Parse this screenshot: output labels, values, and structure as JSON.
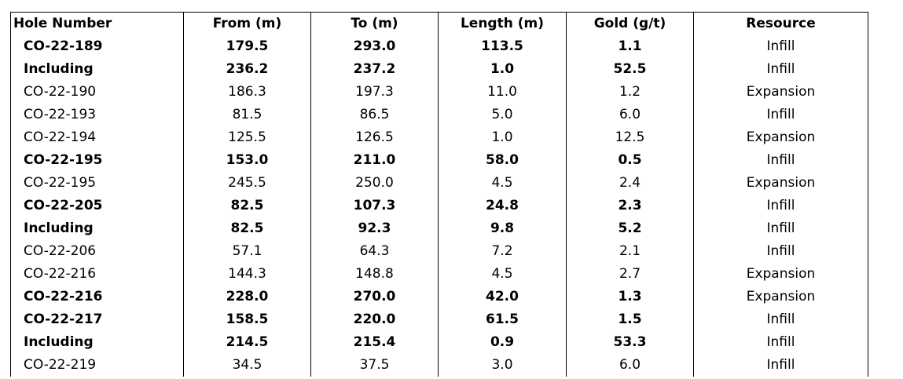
{
  "table": {
    "header": [
      "Hole Number",
      "From (m)",
      "To (m)",
      "Length (m)",
      "Gold (g/t)",
      "Resource"
    ],
    "rows": [
      {
        "cells": [
          "CO-22-189",
          "179.5",
          "293.0",
          "113.5",
          "1.1",
          "Infill"
        ],
        "bold": true
      },
      {
        "cells": [
          "Including",
          "236.2",
          "237.2",
          "1.0",
          "52.5",
          "Infill"
        ],
        "bold": true
      },
      {
        "cells": [
          "CO-22-190",
          "186.3",
          "197.3",
          "11.0",
          "1.2",
          "Expansion"
        ],
        "bold": false
      },
      {
        "cells": [
          "CO-22-193",
          "81.5",
          "86.5",
          "5.0",
          "6.0",
          "Infill"
        ],
        "bold": false
      },
      {
        "cells": [
          "CO-22-194",
          "125.5",
          "126.5",
          "1.0",
          "12.5",
          "Expansion"
        ],
        "bold": false
      },
      {
        "cells": [
          "CO-22-195",
          "153.0",
          "211.0",
          "58.0",
          "0.5",
          "Infill"
        ],
        "bold": true
      },
      {
        "cells": [
          "CO-22-195",
          "245.5",
          "250.0",
          "4.5",
          "2.4",
          "Expansion"
        ],
        "bold": false
      },
      {
        "cells": [
          "CO-22-205",
          "82.5",
          "107.3",
          "24.8",
          "2.3",
          "Infill"
        ],
        "bold": true
      },
      {
        "cells": [
          "Including",
          "82.5",
          "92.3",
          "9.8",
          "5.2",
          "Infill"
        ],
        "bold": true
      },
      {
        "cells": [
          "CO-22-206",
          "57.1",
          "64.3",
          "7.2",
          "2.1",
          "Infill"
        ],
        "bold": false
      },
      {
        "cells": [
          "CO-22-216",
          "144.3",
          "148.8",
          "4.5",
          "2.7",
          "Expansion"
        ],
        "bold": false
      },
      {
        "cells": [
          "CO-22-216",
          "228.0",
          "270.0",
          "42.0",
          "1.3",
          "Expansion"
        ],
        "bold": true
      },
      {
        "cells": [
          "CO-22-217",
          "158.5",
          "220.0",
          "61.5",
          "1.5",
          "Infill"
        ],
        "bold": true
      },
      {
        "cells": [
          "Including",
          "214.5",
          "215.4",
          "0.9",
          "53.3",
          "Infill"
        ],
        "bold": true
      },
      {
        "cells": [
          "CO-22-219",
          "34.5",
          "37.5",
          "3.0",
          "6.0",
          "Infill"
        ],
        "bold": false
      }
    ]
  }
}
